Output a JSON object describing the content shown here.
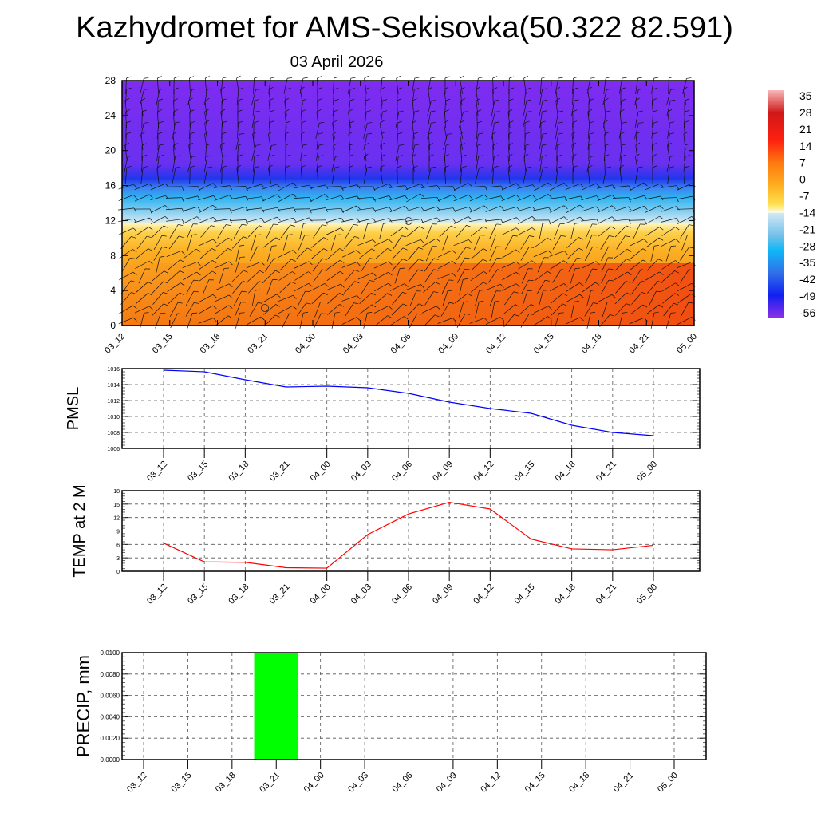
{
  "title": "Kazhydromet for AMS-Sekisovka(50.322 82.591)",
  "subtitle": "03 April 2026",
  "chart_data": [
    {
      "type": "heatmap",
      "name": "cross-section",
      "x_ticks": [
        "03_12",
        "03_15",
        "03_18",
        "03_21",
        "04_00",
        "04_03",
        "04_06",
        "04_09",
        "04_12",
        "04_15",
        "04_18",
        "04_21",
        "05_00"
      ],
      "y_ticks": [
        0,
        4,
        8,
        12,
        16,
        20,
        24,
        28
      ],
      "ylim": [
        0,
        28
      ],
      "colorbar_labels": [
        "35",
        "28",
        "21",
        "14",
        "7",
        "0",
        "-7",
        "-14",
        "-21",
        "-28",
        "-35",
        "-42",
        "-49",
        "-56"
      ],
      "colors": {
        "warm": "#f26a10",
        "mid": "#fbb020",
        "freeze": "#fff6c0",
        "cold": "#30b0f0",
        "upper": "#7a2cf0"
      }
    },
    {
      "type": "line",
      "ylabel": "PMSL",
      "x": [
        "03_12",
        "03_15",
        "03_18",
        "03_21",
        "04_00",
        "04_03",
        "04_06",
        "04_09",
        "04_12",
        "04_15",
        "04_18",
        "04_21",
        "05_00"
      ],
      "values": [
        1015.8,
        1015.6,
        1014.6,
        1013.7,
        1013.8,
        1013.6,
        1012.9,
        1011.8,
        1011.0,
        1010.4,
        1008.9,
        1008.0,
        1007.6
      ],
      "ylim": [
        1006,
        1016
      ],
      "y_ticks": [
        "1006",
        "1008",
        "1010",
        "1012",
        "1014",
        "1016"
      ],
      "color": "#0000ff",
      "grid": true
    },
    {
      "type": "line",
      "ylabel": "TEMP at 2 M",
      "x": [
        "03_12",
        "03_15",
        "03_18",
        "03_21",
        "04_00",
        "04_03",
        "04_06",
        "04_09",
        "04_12",
        "04_15",
        "04_18",
        "04_21",
        "05_00"
      ],
      "values": [
        6.3,
        2.1,
        2.0,
        0.8,
        0.7,
        8.2,
        12.8,
        15.4,
        13.9,
        7.2,
        5.0,
        4.8,
        5.8
      ],
      "ylim": [
        0,
        18
      ],
      "y_ticks": [
        "0",
        "3",
        "6",
        "9",
        "12",
        "15",
        "18"
      ],
      "color": "#ff0000",
      "grid": true
    },
    {
      "type": "bar",
      "ylabel": "PRECIP, mm",
      "categories": [
        "03_12",
        "03_15",
        "03_18",
        "03_21",
        "04_00",
        "04_03",
        "04_06",
        "04_09",
        "04_12",
        "04_15",
        "04_18",
        "04_21",
        "05_00"
      ],
      "values": [
        0,
        0,
        0,
        0.01,
        0,
        0,
        0,
        0,
        0,
        0,
        0,
        0,
        0
      ],
      "ylim": [
        0,
        0.01
      ],
      "y_ticks": [
        "0.0000",
        "0.0020",
        "0.0040",
        "0.0060",
        "0.0080",
        "0.0100"
      ],
      "color": "#00ff00",
      "grid": true
    }
  ]
}
